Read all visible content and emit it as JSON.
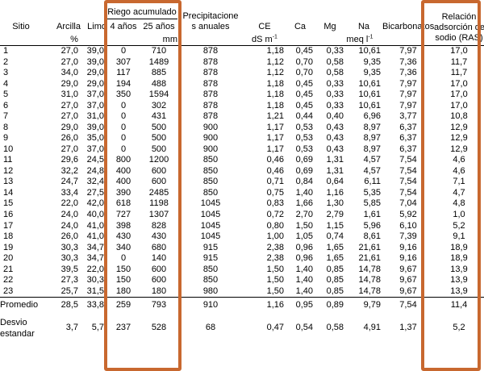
{
  "headers": {
    "sitio": "Sitio",
    "arcilla": "Arcilla",
    "limo": "Limo",
    "riego": "Riego acumulado",
    "riego_4": "4 años",
    "riego_25": "25 años",
    "precip_1": "Precipitacione",
    "precip_2": "s anuales",
    "ce": "CE",
    "ca": "Ca",
    "mg": "Mg",
    "na": "Na",
    "bicarb": "Bicarbonatos",
    "ras_1": "Relación",
    "ras_2": "adsorción de",
    "ras_3": "sodio (RAS)"
  },
  "units": {
    "percent": "%",
    "mm": "mm",
    "ce_unit": "dS m",
    "ce_exp": "-1",
    "meq_unit": "meq l",
    "meq_exp": "-1"
  },
  "rows": [
    [
      "1",
      "27,0",
      "39,0",
      "0",
      "710",
      "878",
      "1,18",
      "0,45",
      "0,33",
      "10,61",
      "7,97",
      "17,0"
    ],
    [
      "2",
      "27,0",
      "39,0",
      "307",
      "1489",
      "878",
      "1,12",
      "0,70",
      "0,58",
      "9,35",
      "7,36",
      "11,7"
    ],
    [
      "3",
      "34,0",
      "29,0",
      "117",
      "885",
      "878",
      "1,12",
      "0,70",
      "0,58",
      "9,35",
      "7,36",
      "11,7"
    ],
    [
      "4",
      "29,0",
      "29,0",
      "194",
      "488",
      "878",
      "1,18",
      "0,45",
      "0,33",
      "10,61",
      "7,97",
      "17,0"
    ],
    [
      "5",
      "31,0",
      "37,0",
      "350",
      "1594",
      "878",
      "1,18",
      "0,45",
      "0,33",
      "10,61",
      "7,97",
      "17,0"
    ],
    [
      "6",
      "27,0",
      "37,0",
      "0",
      "302",
      "878",
      "1,18",
      "0,45",
      "0,33",
      "10,61",
      "7,97",
      "17,0"
    ],
    [
      "7",
      "27,0",
      "31,0",
      "0",
      "431",
      "878",
      "1,21",
      "0,44",
      "0,40",
      "6,96",
      "3,77",
      "10,8"
    ],
    [
      "8",
      "29,0",
      "39,0",
      "0",
      "500",
      "900",
      "1,17",
      "0,53",
      "0,43",
      "8,97",
      "6,37",
      "12,9"
    ],
    [
      "9",
      "26,0",
      "35,0",
      "0",
      "500",
      "900",
      "1,17",
      "0,53",
      "0,43",
      "8,97",
      "6,37",
      "12,9"
    ],
    [
      "10",
      "27,0",
      "37,0",
      "0",
      "500",
      "900",
      "1,17",
      "0,53",
      "0,43",
      "8,97",
      "6,37",
      "12,9"
    ],
    [
      "11",
      "29,6",
      "24,5",
      "800",
      "1200",
      "850",
      "0,46",
      "0,69",
      "1,31",
      "4,57",
      "7,54",
      "4,6"
    ],
    [
      "12",
      "32,2",
      "24,8",
      "400",
      "600",
      "850",
      "0,46",
      "0,69",
      "1,31",
      "4,57",
      "7,54",
      "4,6"
    ],
    [
      "13",
      "24,7",
      "32,4",
      "400",
      "600",
      "850",
      "0,71",
      "0,84",
      "0,64",
      "6,11",
      "7,54",
      "7,1"
    ],
    [
      "14",
      "33,4",
      "27,5",
      "390",
      "2485",
      "850",
      "0,75",
      "1,40",
      "1,16",
      "5,35",
      "7,54",
      "4,7"
    ],
    [
      "15",
      "22,0",
      "42,0",
      "618",
      "1198",
      "1045",
      "0,83",
      "1,66",
      "1,30",
      "5,85",
      "7,04",
      "4,8"
    ],
    [
      "16",
      "24,0",
      "40,0",
      "727",
      "1307",
      "1045",
      "0,72",
      "2,70",
      "2,79",
      "1,61",
      "5,92",
      "1,0"
    ],
    [
      "17",
      "24,0",
      "41,0",
      "398",
      "828",
      "1045",
      "0,80",
      "1,50",
      "1,15",
      "5,96",
      "6,10",
      "5,2"
    ],
    [
      "18",
      "26,0",
      "41,0",
      "430",
      "430",
      "1045",
      "1,00",
      "1,05",
      "0,74",
      "8,61",
      "7,39",
      "9,1"
    ],
    [
      "19",
      "30,3",
      "34,7",
      "340",
      "680",
      "915",
      "2,38",
      "0,96",
      "1,65",
      "21,61",
      "9,16",
      "18,9"
    ],
    [
      "20",
      "30,3",
      "34,7",
      "0",
      "140",
      "915",
      "2,38",
      "0,96",
      "1,65",
      "21,61",
      "9,16",
      "18,9"
    ],
    [
      "21",
      "39,5",
      "22,0",
      "150",
      "600",
      "850",
      "1,50",
      "1,40",
      "0,85",
      "14,78",
      "9,67",
      "13,9"
    ],
    [
      "22",
      "27,3",
      "30,3",
      "150",
      "600",
      "850",
      "1,50",
      "1,40",
      "0,85",
      "14,78",
      "9,67",
      "13,9"
    ],
    [
      "23",
      "25,7",
      "31,5",
      "180",
      "180",
      "980",
      "1,50",
      "1,40",
      "0,85",
      "14,78",
      "9,67",
      "13,9"
    ]
  ],
  "promedio": [
    "Promedio",
    "28,5",
    "33,8",
    "259",
    "793",
    "910",
    "1,16",
    "0,95",
    "0,89",
    "9,79",
    "7,54",
    "11,4"
  ],
  "desvio": {
    "label_1": "Desvio",
    "label_2": "estandar",
    "values": [
      "3,7",
      "5,7",
      "237",
      "528",
      "68",
      "0,47",
      "0,54",
      "0,58",
      "4,91",
      "1,37",
      "5,2"
    ]
  },
  "highlight_color": "#c8682f"
}
